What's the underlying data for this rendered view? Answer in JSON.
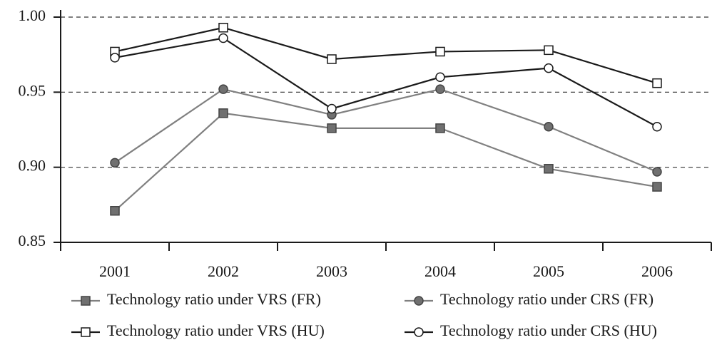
{
  "chart_data": {
    "type": "line",
    "categories": [
      "2001",
      "2002",
      "2003",
      "2004",
      "2005",
      "2006"
    ],
    "series": [
      {
        "name": "Technology ratio under VRS (FR)",
        "color": "#808080",
        "marker": "square",
        "marker_fill": "#707070",
        "values": [
          0.871,
          0.936,
          0.926,
          0.926,
          0.899,
          0.887
        ]
      },
      {
        "name": "Technology ratio under CRS (FR)",
        "color": "#808080",
        "marker": "circle",
        "marker_fill": "#707070",
        "values": [
          0.903,
          0.952,
          0.935,
          0.952,
          0.927,
          0.897
        ]
      },
      {
        "name": "Technology ratio under VRS (HU)",
        "color": "#1a1a1a",
        "marker": "square",
        "marker_fill": "#ffffff",
        "values": [
          0.977,
          0.993,
          0.972,
          0.977,
          0.978,
          0.956
        ]
      },
      {
        "name": "Technology ratio under CRS (HU)",
        "color": "#1a1a1a",
        "marker": "circle",
        "marker_fill": "#ffffff",
        "values": [
          0.973,
          0.986,
          0.939,
          0.96,
          0.966,
          0.927
        ]
      }
    ],
    "ylim": [
      0.85,
      1.0
    ],
    "yticks": [
      0.85,
      {
        "value": 0.9,
        "label": "0.90"
      },
      0.95,
      {
        "value": 1.0,
        "label": "1.00"
      }
    ],
    "grid": true,
    "legend": "bottom"
  }
}
